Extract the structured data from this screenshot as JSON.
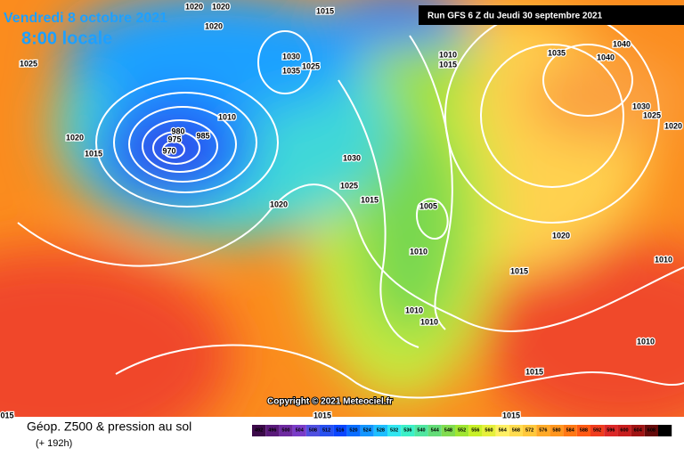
{
  "header": {
    "title": "Vendredi 8 octobre 2021",
    "subtitle": "8:00 locale",
    "run": "Run GFS 6 Z du Jeudi 30 septembre 2021"
  },
  "isobars": [
    1020,
    1020,
    1015,
    1020,
    1025,
    1030,
    1035,
    1025,
    1010,
    1015,
    1035,
    1040,
    1040,
    1030,
    1025,
    1020,
    1020,
    1015,
    980,
    975,
    970,
    985,
    1010,
    1030,
    1025,
    1015,
    1005,
    1020,
    1020,
    1010,
    1015,
    1010,
    1010,
    1010,
    1010,
    1015,
    1015,
    1015,
    "015"
  ],
  "copyright": "Copyright © 2021 Meteociel.fr",
  "legend": {
    "title": "Géop. Z500 & pression au sol",
    "subtitle": "(+ 192h)",
    "values": [
      492,
      496,
      500,
      504,
      508,
      512,
      516,
      520,
      524,
      528,
      532,
      536,
      540,
      544,
      548,
      552,
      556,
      560,
      564,
      568,
      572,
      576,
      580,
      584,
      588,
      592,
      596,
      600,
      604,
      608,
      612
    ],
    "colors": [
      "#3c0a4a",
      "#5a1a7a",
      "#6e2aa0",
      "#7a3cc8",
      "#5050e0",
      "#2850f0",
      "#0a46ff",
      "#0a6eff",
      "#1496ff",
      "#1ebeff",
      "#32e6f0",
      "#3cf0c8",
      "#50e6a0",
      "#64dc78",
      "#82dc50",
      "#a0e632",
      "#c8f028",
      "#e6f03c",
      "#fff064",
      "#ffdc50",
      "#ffc83c",
      "#ffaa28",
      "#ff961e",
      "#ff7814",
      "#ff5a14",
      "#f03c1e",
      "#dc2828",
      "#c81e1e",
      "#a01414",
      "#640a0a",
      "#000000"
    ]
  }
}
